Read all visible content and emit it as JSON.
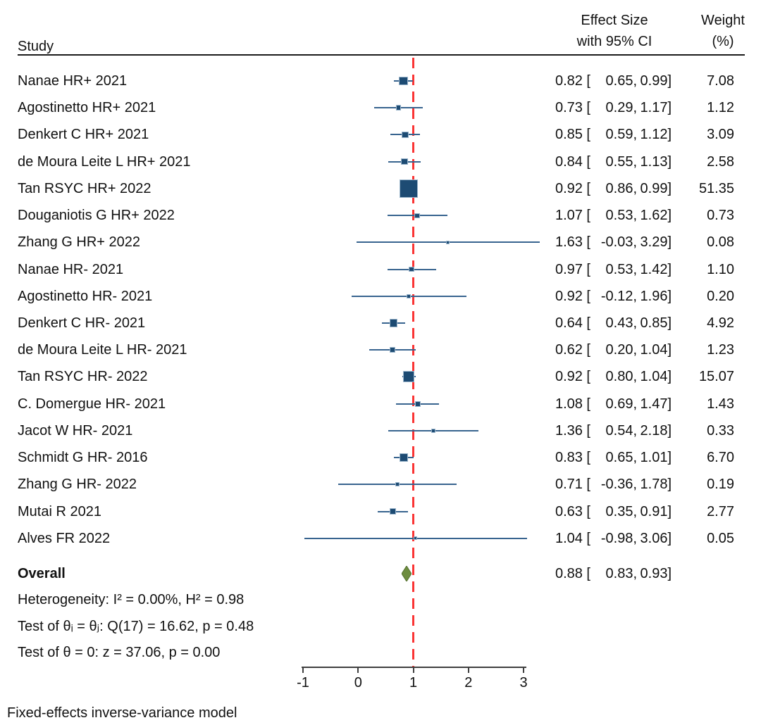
{
  "header": {
    "study": "Study",
    "effect_line1": "Effect Size",
    "effect_line2": "with 95% CI",
    "weight_line1": "Weight",
    "weight_line2": "(%)"
  },
  "chart_data": {
    "type": "forest",
    "title": "",
    "xlabel": "",
    "x_axis": {
      "ticks": [
        -1,
        0,
        1,
        2,
        3
      ],
      "reference_line_x": 1,
      "xlim": [
        -1,
        3
      ]
    },
    "studies": [
      {
        "label": "Nanae HR+ 2021",
        "est": 0.82,
        "lo": 0.65,
        "hi": 0.99,
        "weight": 7.08
      },
      {
        "label": "Agostinetto HR+ 2021",
        "est": 0.73,
        "lo": 0.29,
        "hi": 1.17,
        "weight": 1.12
      },
      {
        "label": "Denkert C HR+ 2021",
        "est": 0.85,
        "lo": 0.59,
        "hi": 1.12,
        "weight": 3.09
      },
      {
        "label": "de Moura Leite L HR+ 2021",
        "est": 0.84,
        "lo": 0.55,
        "hi": 1.13,
        "weight": 2.58
      },
      {
        "label": "Tan RSYC HR+ 2022",
        "est": 0.92,
        "lo": 0.86,
        "hi": 0.99,
        "weight": 51.35
      },
      {
        "label": "Douganiotis G HR+ 2022",
        "est": 1.07,
        "lo": 0.53,
        "hi": 1.62,
        "weight": 0.73
      },
      {
        "label": "Zhang G HR+ 2022",
        "est": 1.63,
        "lo": -0.03,
        "hi": 3.29,
        "weight": 0.08
      },
      {
        "label": "Nanae HR- 2021",
        "est": 0.97,
        "lo": 0.53,
        "hi": 1.42,
        "weight": 1.1
      },
      {
        "label": "Agostinetto HR- 2021",
        "est": 0.92,
        "lo": -0.12,
        "hi": 1.96,
        "weight": 0.2
      },
      {
        "label": "Denkert C HR- 2021",
        "est": 0.64,
        "lo": 0.43,
        "hi": 0.85,
        "weight": 4.92
      },
      {
        "label": "de Moura Leite L HR- 2021",
        "est": 0.62,
        "lo": 0.2,
        "hi": 1.04,
        "weight": 1.23
      },
      {
        "label": "Tan RSYC HR- 2022",
        "est": 0.92,
        "lo": 0.8,
        "hi": 1.04,
        "weight": 15.07
      },
      {
        "label": "C. Domergue HR- 2021",
        "est": 1.08,
        "lo": 0.69,
        "hi": 1.47,
        "weight": 1.43
      },
      {
        "label": "Jacot W HR- 2021",
        "est": 1.36,
        "lo": 0.54,
        "hi": 2.18,
        "weight": 0.33
      },
      {
        "label": "Schmidt G HR- 2016",
        "est": 0.83,
        "lo": 0.65,
        "hi": 1.01,
        "weight": 6.7
      },
      {
        "label": "Zhang G HR- 2022",
        "est": 0.71,
        "lo": -0.36,
        "hi": 1.78,
        "weight": 0.19
      },
      {
        "label": "Mutai R 2021",
        "est": 0.63,
        "lo": 0.35,
        "hi": 0.91,
        "weight": 2.77
      },
      {
        "label": "Alves FR 2022",
        "est": 1.04,
        "lo": -0.98,
        "hi": 3.06,
        "weight": 0.05
      }
    ],
    "overall": {
      "label": "Overall",
      "est": 0.88,
      "lo": 0.83,
      "hi": 0.93
    },
    "stats": [
      "Heterogeneity: I² = 0.00%, H² = 0.98",
      "Test of θᵢ = θⱼ: Q(17) = 16.62, p = 0.48",
      "Test of θ = 0: z = 37.06, p = 0.00"
    ],
    "note": "Fixed-effects inverse-variance model",
    "legend": "off",
    "colors": {
      "marker_fill": "#1d4b73",
      "marker_edge": "#9cb6cc",
      "ci_line": "#38648f",
      "reference_line": "#fa3434",
      "overall_diamond": "#6d8c3f",
      "overall_diamond_edge": "#55702f",
      "text": "#111111"
    }
  }
}
